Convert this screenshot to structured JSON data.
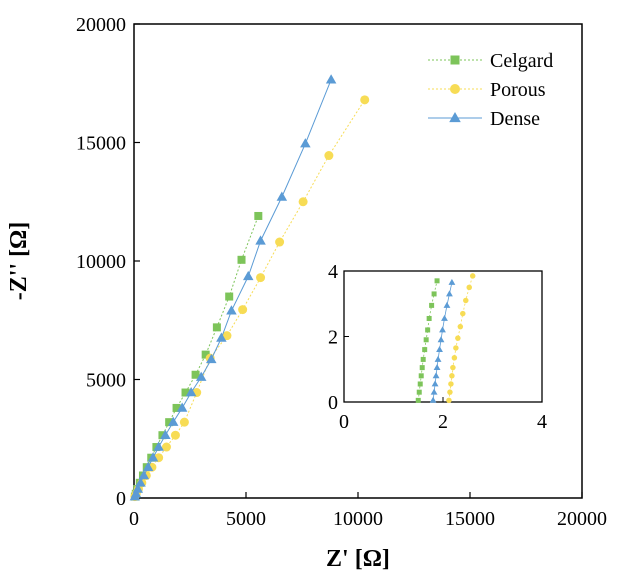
{
  "chart_data": {
    "type": "scatter",
    "xlabel": "Z' [Ω]",
    "ylabel": "-Z'' [Ω]",
    "xlim": [
      0,
      20000
    ],
    "ylim": [
      0,
      20000
    ],
    "xticks": [
      0,
      5000,
      10000,
      15000,
      20000
    ],
    "yticks": [
      0,
      5000,
      10000,
      15000,
      20000
    ],
    "legend_position": "top-right",
    "series": [
      {
        "name": "Celgard",
        "color": "#7dc45a",
        "marker": "square",
        "line_style": "dotted",
        "points": [
          [
            40,
            60
          ],
          [
            80,
            180
          ],
          [
            150,
            380
          ],
          [
            260,
            640
          ],
          [
            400,
            950
          ],
          [
            570,
            1300
          ],
          [
            770,
            1700
          ],
          [
            1000,
            2150
          ],
          [
            1270,
            2650
          ],
          [
            1570,
            3200
          ],
          [
            1900,
            3800
          ],
          [
            2300,
            4450
          ],
          [
            2750,
            5200
          ],
          [
            3200,
            6050
          ],
          [
            3700,
            7200
          ],
          [
            4250,
            8500
          ],
          [
            4800,
            10050
          ],
          [
            5550,
            11900
          ]
        ]
      },
      {
        "name": "Porous",
        "color": "#f7dc55",
        "marker": "circle",
        "line_style": "dotted",
        "points": [
          [
            40,
            60
          ],
          [
            100,
            180
          ],
          [
            200,
            380
          ],
          [
            350,
            640
          ],
          [
            550,
            950
          ],
          [
            800,
            1300
          ],
          [
            1100,
            1700
          ],
          [
            1450,
            2150
          ],
          [
            1850,
            2650
          ],
          [
            2250,
            3200
          ],
          [
            2800,
            4450
          ],
          [
            3400,
            5900
          ],
          [
            4150,
            6850
          ],
          [
            4850,
            7950
          ],
          [
            5650,
            9300
          ],
          [
            6500,
            10800
          ],
          [
            7550,
            12500
          ],
          [
            8700,
            14450
          ],
          [
            10300,
            16800
          ]
        ]
      },
      {
        "name": "Dense",
        "color": "#5b9bd5",
        "marker": "triangle",
        "line_style": "solid",
        "points": [
          [
            40,
            60
          ],
          [
            90,
            180
          ],
          [
            170,
            380
          ],
          [
            290,
            640
          ],
          [
            440,
            950
          ],
          [
            630,
            1300
          ],
          [
            850,
            1700
          ],
          [
            1100,
            2150
          ],
          [
            1400,
            2650
          ],
          [
            1750,
            3200
          ],
          [
            2150,
            3800
          ],
          [
            2550,
            4450
          ],
          [
            3000,
            5100
          ],
          [
            3450,
            5850
          ],
          [
            3900,
            6750
          ],
          [
            4350,
            7900
          ],
          [
            5100,
            9350
          ],
          [
            5650,
            10850
          ],
          [
            6600,
            12700
          ],
          [
            7650,
            14950
          ],
          [
            8800,
            17650
          ]
        ]
      }
    ],
    "inset": {
      "xlim": [
        0,
        4
      ],
      "ylim": [
        0,
        4
      ],
      "xticks": [
        0,
        2,
        4
      ],
      "yticks": [
        0,
        2,
        4
      ],
      "series": [
        {
          "name": "Celgard",
          "points": [
            [
              1.5,
              0.05
            ],
            [
              1.52,
              0.3
            ],
            [
              1.54,
              0.55
            ],
            [
              1.56,
              0.8
            ],
            [
              1.58,
              1.05
            ],
            [
              1.6,
              1.3
            ],
            [
              1.63,
              1.6
            ],
            [
              1.66,
              1.9
            ],
            [
              1.69,
              2.2
            ],
            [
              1.72,
              2.55
            ],
            [
              1.77,
              2.95
            ],
            [
              1.82,
              3.3
            ],
            [
              1.88,
              3.7
            ]
          ]
        },
        {
          "name": "Porous",
          "points": [
            [
              2.12,
              0.05
            ],
            [
              2.14,
              0.3
            ],
            [
              2.16,
              0.55
            ],
            [
              2.18,
              0.8
            ],
            [
              2.2,
              1.05
            ],
            [
              2.23,
              1.35
            ],
            [
              2.26,
              1.65
            ],
            [
              2.3,
              1.95
            ],
            [
              2.35,
              2.3
            ],
            [
              2.4,
              2.7
            ],
            [
              2.46,
              3.1
            ],
            [
              2.53,
              3.5
            ],
            [
              2.6,
              3.85
            ]
          ]
        },
        {
          "name": "Dense",
          "points": [
            [
              1.8,
              0.05
            ],
            [
              1.82,
              0.3
            ],
            [
              1.84,
              0.55
            ],
            [
              1.86,
              0.8
            ],
            [
              1.88,
              1.05
            ],
            [
              1.9,
              1.3
            ],
            [
              1.93,
              1.6
            ],
            [
              1.96,
              1.9
            ],
            [
              1.99,
              2.2
            ],
            [
              2.03,
              2.55
            ],
            [
              2.08,
              2.95
            ],
            [
              2.13,
              3.3
            ],
            [
              2.18,
              3.65
            ]
          ]
        }
      ]
    }
  }
}
